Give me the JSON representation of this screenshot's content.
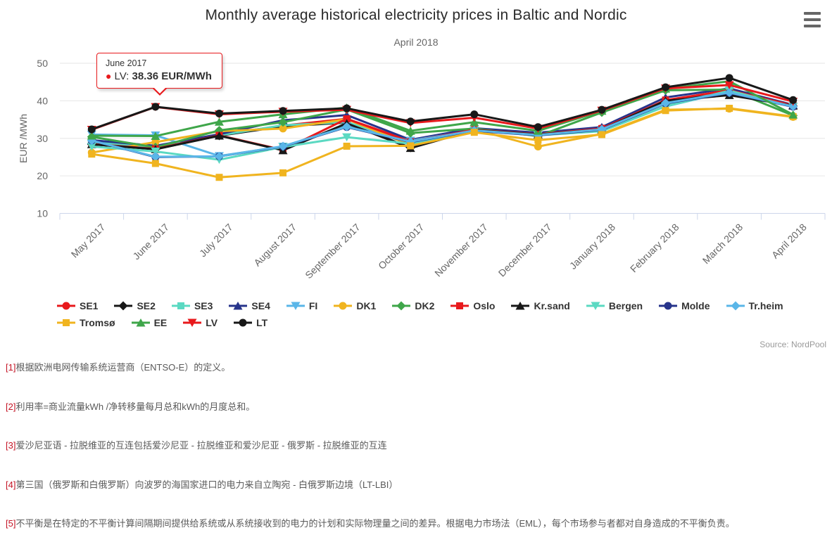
{
  "header": {
    "title": "Monthly average historical electricity prices in Baltic and Nordic",
    "subtitle": "April 2018",
    "menu_icon": "hamburger-icon"
  },
  "tooltip": {
    "header": "June 2017",
    "series_label": "LV:",
    "value_text": "38.36 EUR/MWh",
    "accent_color": "#e8191c"
  },
  "source": {
    "label": "Source: NordPool"
  },
  "chart_data": {
    "type": "line",
    "title": "Monthly average historical electricity prices in Baltic and Nordic",
    "subtitle": "April 2018",
    "xlabel": "",
    "ylabel": "EUR /MWh",
    "ylim": [
      10,
      50
    ],
    "yticks": [
      10,
      20,
      30,
      40,
      50
    ],
    "grid": true,
    "legend_position": "bottom",
    "unit": "EUR/MWh",
    "categories": [
      "May 2017",
      "June 2017",
      "July 2017",
      "August 2017",
      "September 2017",
      "October 2017",
      "November 2017",
      "December 2017",
      "January 2018",
      "February 2018",
      "March 2018",
      "April 2018"
    ],
    "highlight": {
      "category": "June 2017",
      "series": "LV",
      "value": 38.36
    },
    "series": [
      {
        "name": "SE1",
        "color": "#e8191c",
        "marker": "circle",
        "values": [
          28.6,
          27.3,
          30.9,
          33.4,
          35.2,
          29.3,
          32.4,
          31.2,
          32.7,
          40.1,
          42.8,
          38.8
        ]
      },
      {
        "name": "SE2",
        "color": "#181818",
        "marker": "diamond",
        "values": [
          28.4,
          27.1,
          30.7,
          33.2,
          34.2,
          27.5,
          32.2,
          31.0,
          32.5,
          39.9,
          42.6,
          38.6
        ]
      },
      {
        "name": "SE3",
        "color": "#5bd9c2",
        "marker": "square",
        "values": [
          29.0,
          27.6,
          30.8,
          33.5,
          34.3,
          29.0,
          32.3,
          31.3,
          32.1,
          38.6,
          42.9,
          38.6
        ]
      },
      {
        "name": "SE4",
        "color": "#27348b",
        "marker": "triangle",
        "values": [
          29.5,
          28.0,
          31.1,
          34.8,
          36.2,
          29.6,
          32.7,
          31.5,
          33.0,
          40.9,
          43.3,
          38.9
        ]
      },
      {
        "name": "FI",
        "color": "#5ab6e8",
        "marker": "triangle-down",
        "values": [
          31.0,
          30.8,
          25.3,
          27.8,
          33.4,
          29.4,
          32.1,
          30.9,
          32.3,
          38.5,
          42.5,
          38.5
        ]
      },
      {
        "name": "DK1",
        "color": "#f0b41f",
        "marker": "circle",
        "values": [
          26.2,
          29.0,
          31.9,
          32.6,
          35.1,
          28.2,
          32.4,
          27.8,
          31.2,
          37.6,
          37.9,
          35.7
        ]
      },
      {
        "name": "DK2",
        "color": "#3fa64a",
        "marker": "diamond",
        "values": [
          30.4,
          27.6,
          32.1,
          34.3,
          37.7,
          31.4,
          32.6,
          30.6,
          36.9,
          42.8,
          43.0,
          36.1
        ]
      },
      {
        "name": "Oslo",
        "color": "#e8191c",
        "marker": "square",
        "values": [
          28.5,
          27.2,
          30.8,
          26.9,
          35.2,
          29.1,
          32.3,
          31.1,
          32.6,
          40.2,
          42.8,
          38.8
        ]
      },
      {
        "name": "Kr.sand",
        "color": "#181818",
        "marker": "triangle",
        "values": [
          28.4,
          27.1,
          30.7,
          26.8,
          34.0,
          27.4,
          32.2,
          31.0,
          32.4,
          40.0,
          41.5,
          38.7
        ]
      },
      {
        "name": "Bergen",
        "color": "#5bd9c2",
        "marker": "triangle-down",
        "values": [
          27.8,
          26.5,
          24.3,
          27.7,
          30.3,
          28.6,
          32.0,
          30.8,
          31.9,
          38.5,
          42.7,
          38.4
        ]
      },
      {
        "name": "Molde",
        "color": "#27348b",
        "marker": "circle",
        "values": [
          29.4,
          25.0,
          25.2,
          27.8,
          33.0,
          29.0,
          32.0,
          30.8,
          32.3,
          39.3,
          42.1,
          38.4
        ]
      },
      {
        "name": "Tr.heim",
        "color": "#5ab6e8",
        "marker": "diamond",
        "values": [
          29.4,
          25.1,
          25.2,
          27.9,
          33.1,
          29.1,
          32.1,
          30.9,
          32.4,
          39.4,
          42.2,
          38.5
        ]
      },
      {
        "name": "Tromsø",
        "color": "#f0b41f",
        "marker": "square",
        "values": [
          25.8,
          23.3,
          19.6,
          20.8,
          27.9,
          28.0,
          31.6,
          29.5,
          31.0,
          37.4,
          38.0,
          35.8
        ]
      },
      {
        "name": "EE",
        "color": "#3fa64a",
        "marker": "triangle",
        "values": [
          30.7,
          30.6,
          34.4,
          36.4,
          38.2,
          32.0,
          34.3,
          32.0,
          37.3,
          43.2,
          45.2,
          36.3
        ]
      },
      {
        "name": "LV",
        "color": "#e8191c",
        "marker": "triangle-down",
        "values": [
          32.3,
          38.36,
          36.4,
          37.1,
          37.6,
          34.1,
          35.5,
          32.6,
          37.4,
          43.3,
          44.2,
          39.8
        ]
      },
      {
        "name": "LT",
        "color": "#181818",
        "marker": "circle",
        "values": [
          32.4,
          38.4,
          36.6,
          37.3,
          38.0,
          34.5,
          36.4,
          33.0,
          37.6,
          43.6,
          46.1,
          40.2
        ]
      }
    ]
  },
  "footnotes": [
    {
      "ref": "[1]",
      "text": "根据欧洲电网传输系统运营商（ENTSO-E）的定义。"
    },
    {
      "ref": "[2]",
      "text": "利用率=商业流量kWh /净转移量每月总和kWh的月度总和。"
    },
    {
      "ref": "[3]",
      "text": "爱沙尼亚语 - 拉脱维亚的互连包括爱沙尼亚 - 拉脱维亚和爱沙尼亚 - 俄罗斯 - 拉脱维亚的互连"
    },
    {
      "ref": "[4]",
      "text": "第三国（俄罗斯和白俄罗斯）向波罗的海国家进口的电力来自立陶宛 - 白俄罗斯边境（LT-LBI）"
    },
    {
      "ref": "[5]",
      "text": "不平衡是在特定的不平衡计算间隔期间提供给系统或从系统接收到的电力的计划和实际物理量之间的差异。根据电力市场法（EML），每个市场参与者都对自身造成的不平衡负责。"
    }
  ]
}
